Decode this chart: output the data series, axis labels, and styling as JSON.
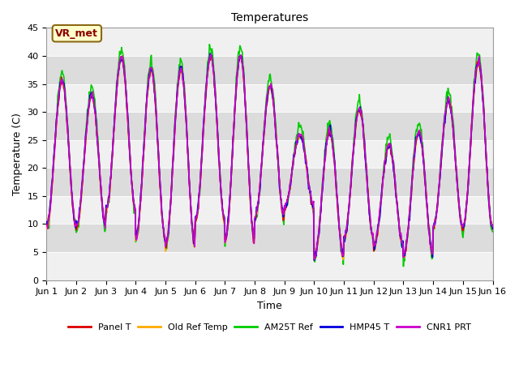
{
  "title": "Temperatures",
  "xlabel": "Time",
  "ylabel": "Temperature (C)",
  "xlim": [
    0,
    15
  ],
  "ylim": [
    0,
    45
  ],
  "yticks": [
    0,
    5,
    10,
    15,
    20,
    25,
    30,
    35,
    40,
    45
  ],
  "xtick_labels": [
    "Jun 1",
    "Jun 2",
    "Jun 3",
    "Jun 4",
    "Jun 5",
    "Jun 6",
    "Jun 7",
    "Jun 8",
    "Jun 9",
    "Jun 10",
    "Jun 11",
    "Jun 12",
    "Jun 13",
    "Jun 14",
    "Jun 15",
    "Jun 16"
  ],
  "annotation_text": "VR_met",
  "bg_light": "#f0f0f0",
  "bg_dark": "#dcdcdc",
  "series": {
    "Panel T": {
      "color": "#dd0000",
      "lw": 1.2
    },
    "Old Ref Temp": {
      "color": "#ffaa00",
      "lw": 1.2
    },
    "AM25T Ref": {
      "color": "#00cc00",
      "lw": 1.2
    },
    "HMP45 T": {
      "color": "#0000dd",
      "lw": 1.2
    },
    "CNR1 PRT": {
      "color": "#cc00cc",
      "lw": 1.2
    }
  },
  "day_params": [
    {
      "min": 9.5,
      "max": 35.5,
      "peak": 0.52
    },
    {
      "min": 9.5,
      "max": 33.0,
      "peak": 0.52
    },
    {
      "min": 12.5,
      "max": 39.5,
      "peak": 0.52
    },
    {
      "min": 7.5,
      "max": 37.5,
      "peak": 0.52
    },
    {
      "min": 6.0,
      "max": 37.5,
      "peak": 0.52
    },
    {
      "min": 10.5,
      "max": 40.0,
      "peak": 0.52
    },
    {
      "min": 7.0,
      "max": 40.0,
      "peak": 0.52
    },
    {
      "min": 11.0,
      "max": 34.5,
      "peak": 0.52
    },
    {
      "min": 13.0,
      "max": 26.0,
      "peak": 0.52
    },
    {
      "min": 4.0,
      "max": 26.5,
      "peak": 0.52
    },
    {
      "min": 7.5,
      "max": 30.5,
      "peak": 0.52
    },
    {
      "min": 6.0,
      "max": 24.0,
      "peak": 0.52
    },
    {
      "min": 4.5,
      "max": 26.5,
      "peak": 0.52
    },
    {
      "min": 9.5,
      "max": 32.0,
      "peak": 0.52
    },
    {
      "min": 9.5,
      "max": 39.0,
      "peak": 0.52
    }
  ]
}
